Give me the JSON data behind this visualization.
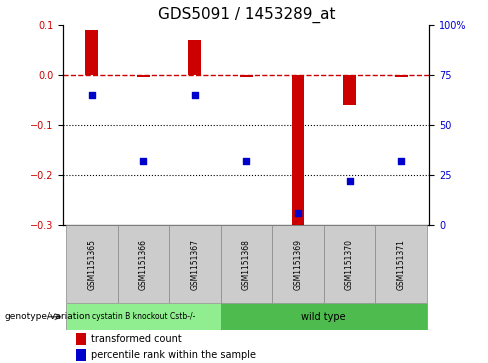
{
  "title": "GDS5091 / 1453289_at",
  "samples": [
    "GSM1151365",
    "GSM1151366",
    "GSM1151367",
    "GSM1151368",
    "GSM1151369",
    "GSM1151370",
    "GSM1151371"
  ],
  "bar_values": [
    0.09,
    -0.003,
    0.07,
    -0.003,
    -0.305,
    -0.06,
    -0.003
  ],
  "dot_percentile": [
    65,
    32,
    65,
    32,
    6,
    22,
    32
  ],
  "ylim_left": [
    -0.3,
    0.1
  ],
  "ylim_right": [
    0,
    100
  ],
  "yticks_left": [
    -0.3,
    -0.2,
    -0.1,
    0.0,
    0.1
  ],
  "yticks_right": [
    0,
    25,
    50,
    75,
    100
  ],
  "ytick_labels_right": [
    "0",
    "25",
    "50",
    "75",
    "100%"
  ],
  "hline_y": 0.0,
  "dotted_lines": [
    -0.1,
    -0.2
  ],
  "bar_color": "#cc0000",
  "dot_color": "#0000cc",
  "hline_color": "#cc0000",
  "group1_label": "cystatin B knockout Cstb-/-",
  "group2_label": "wild type",
  "group1_color": "#90ee90",
  "group2_color": "#4dbb4d",
  "group1_count": 3,
  "group2_count": 4,
  "genotype_label": "genotype/variation",
  "legend_bar_label": "transformed count",
  "legend_dot_label": "percentile rank within the sample",
  "title_fontsize": 11,
  "tick_fontsize": 7,
  "bar_width": 0.25
}
